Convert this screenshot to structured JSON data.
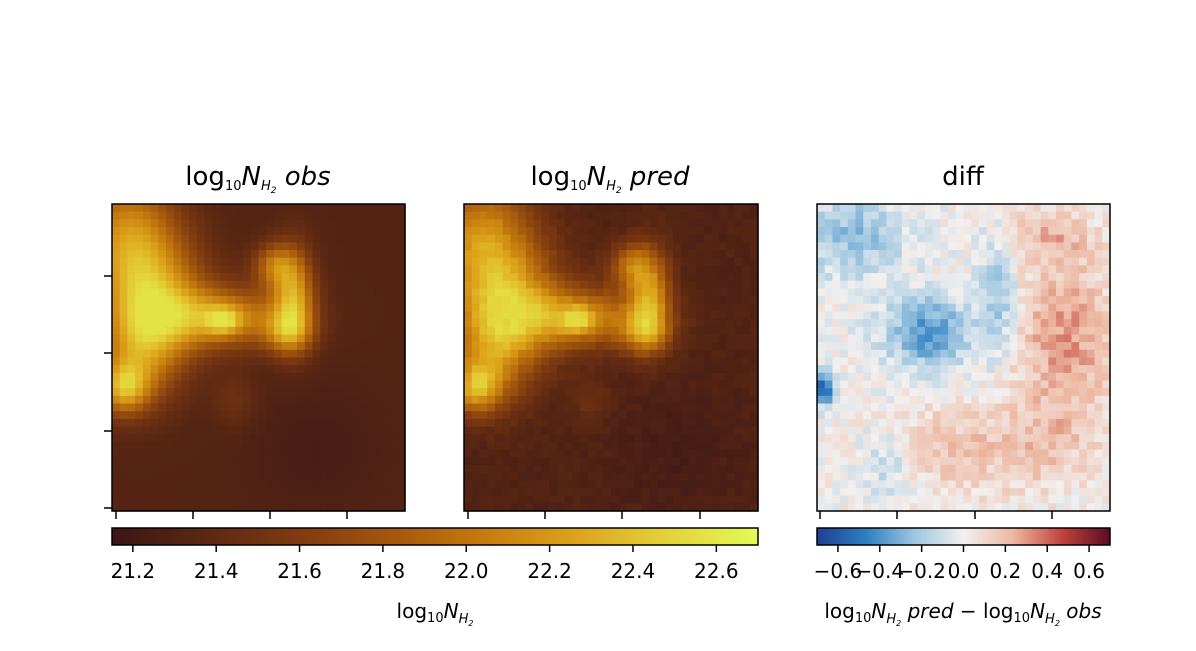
{
  "chart_data": [
    {
      "type": "heatmap",
      "title": "log10 N_H2 obs",
      "title_parts": {
        "prefix": "log",
        "base": "10",
        "var": "N",
        "sub": "H",
        "subsub": "2",
        "suffix": "obs"
      },
      "grid_size": [
        38,
        40
      ],
      "colormap": "afmhot-like (dark brown to yellow)",
      "value_range": [
        21.15,
        22.7
      ],
      "y_ticks_labels": false,
      "x_ticks_labels": false
    },
    {
      "type": "heatmap",
      "title": "log10 N_H2 pred",
      "title_parts": {
        "prefix": "log",
        "base": "10",
        "var": "N",
        "sub": "H",
        "subsub": "2",
        "suffix": "pred"
      },
      "grid_size": [
        38,
        40
      ],
      "colormap": "afmhot-like (dark brown to yellow)",
      "value_range": [
        21.15,
        22.7
      ],
      "y_ticks_labels": false,
      "x_ticks_labels": false
    },
    {
      "type": "heatmap",
      "title": "diff",
      "grid_size": [
        38,
        40
      ],
      "colormap": "RdBu_r (blue-white-red)",
      "value_range": [
        -0.7,
        0.7
      ],
      "y_ticks_labels": false,
      "x_ticks_labels": false
    }
  ],
  "colorbars": [
    {
      "name": "main",
      "ticks": [
        "21.2",
        "21.4",
        "21.6",
        "21.8",
        "22.0",
        "22.2",
        "22.4",
        "22.6"
      ],
      "tick_values": [
        21.2,
        21.4,
        21.6,
        21.8,
        22.0,
        22.2,
        22.4,
        22.6
      ],
      "range": [
        21.15,
        22.7
      ],
      "label_parts": {
        "prefix": "log",
        "base": "10",
        "var": "N",
        "sub": "H",
        "subsub": "2"
      }
    },
    {
      "name": "diff",
      "ticks": [
        "−0.6",
        "−0.4",
        "−0.2",
        "0.0",
        "0.2",
        "0.4",
        "0.6"
      ],
      "tick_values": [
        -0.6,
        -0.4,
        -0.2,
        0.0,
        0.2,
        0.4,
        0.6
      ],
      "range": [
        -0.7,
        0.7
      ],
      "label_parts": {
        "pred": "pred",
        "minus": " − ",
        "obs": "obs",
        "prefix": "log",
        "base": "10",
        "var": "N",
        "sub": "H",
        "subsub": "2"
      }
    }
  ],
  "colors": {
    "hot_stops": [
      "#3a1717",
      "#5b2713",
      "#7e3a10",
      "#a2560d",
      "#c47a0d",
      "#dca21a",
      "#e4d13a",
      "#e2fa56"
    ],
    "diff_stops": [
      "#1f3f8f",
      "#2c7fc1",
      "#9ec6e0",
      "#f2f0ef",
      "#edb9a3",
      "#c2453e",
      "#5a0d22"
    ]
  }
}
